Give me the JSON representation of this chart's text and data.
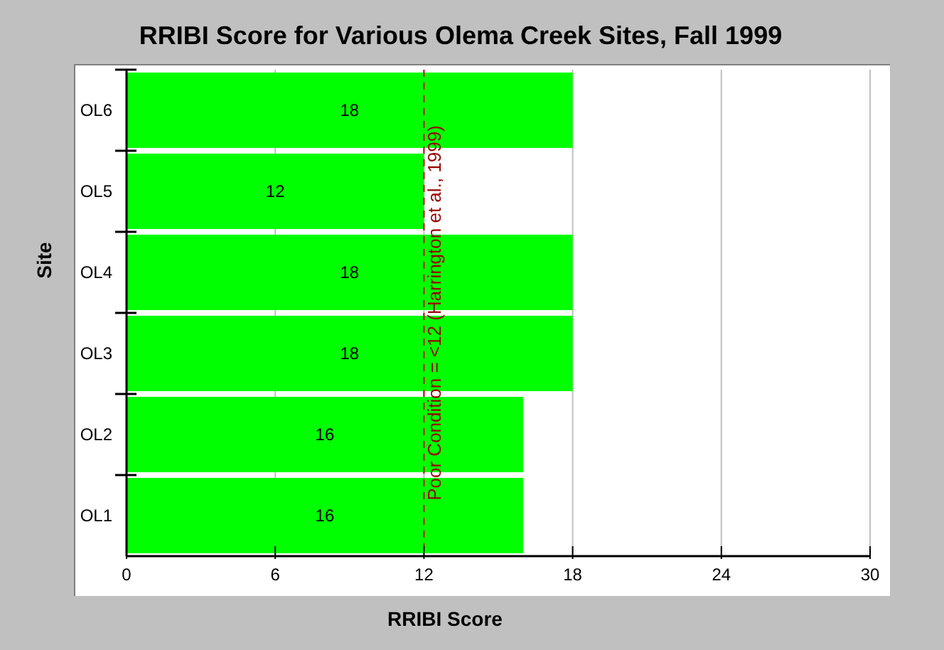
{
  "chart_data": {
    "type": "bar",
    "orientation": "horizontal",
    "title": "RRIBI Score for Various Olema Creek Sites, Fall 1999",
    "xlabel": "RRIBI Score",
    "ylabel": "Site",
    "categories": [
      "OL6",
      "OL5",
      "OL4",
      "OL3",
      "OL2",
      "OL1"
    ],
    "values": [
      18,
      12,
      18,
      18,
      16,
      16
    ],
    "color": "#00ff00",
    "xlim": [
      0,
      30
    ],
    "xticks": [
      0,
      6,
      12,
      18,
      24,
      30
    ],
    "grid": "x",
    "data_labels": true,
    "ref_lines": [
      {
        "axis": "x",
        "value": 12,
        "label": "Poor Condition = <12 (Harrington et al., 1999)",
        "color": "#cc0000",
        "line_style": "dashed"
      }
    ]
  }
}
